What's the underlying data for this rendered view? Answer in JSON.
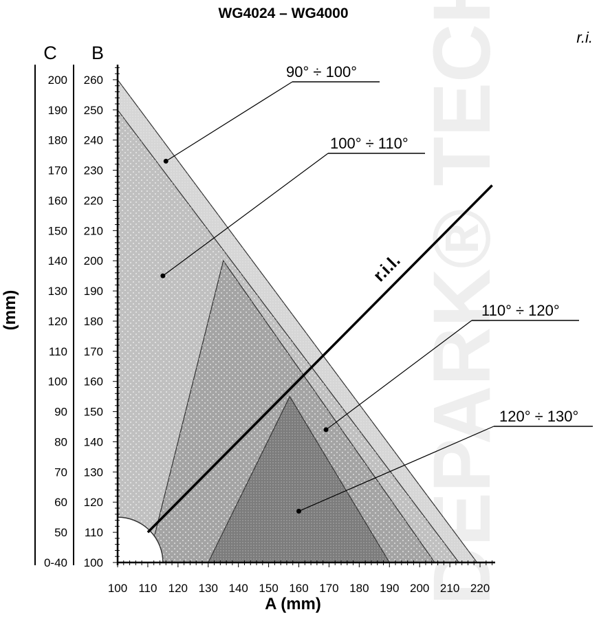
{
  "title": "WG4024 – WG4000",
  "corner_note": "r.i.",
  "watermark": "DEPARK® TECHNOPARK",
  "chart_data": {
    "type": "area",
    "title": "WG4024 – WG4000",
    "xlabel": "A (mm)",
    "ylabel": "(mm)",
    "axis_b_name": "B",
    "axis_c_name": "C",
    "xlim": [
      100,
      225
    ],
    "ylim": [
      100,
      265
    ],
    "x_ticks": [
      100,
      110,
      120,
      130,
      140,
      150,
      160,
      170,
      180,
      190,
      200,
      210,
      220
    ],
    "b_ticks": [
      100,
      110,
      120,
      130,
      140,
      150,
      160,
      170,
      180,
      190,
      200,
      210,
      220,
      230,
      240,
      250,
      260
    ],
    "c_ticks": [
      "0-40",
      "50",
      "60",
      "70",
      "80",
      "90",
      "100",
      "110",
      "120",
      "130",
      "140",
      "150",
      "160",
      "170",
      "180",
      "190",
      "200"
    ],
    "series": [
      {
        "name": "90° ÷ 100°",
        "color": "#d6d6d6",
        "polygon": [
          [
            100,
            260
          ],
          [
            219,
            100
          ],
          [
            100,
            100
          ]
        ]
      },
      {
        "name": "100° ÷ 110°",
        "color": "#c0c0c0",
        "polygon": [
          [
            100,
            250
          ],
          [
            213,
            100
          ],
          [
            100,
            100
          ]
        ]
      },
      {
        "name": "110° ÷ 120°",
        "color": "#a4a4a4",
        "polygon": [
          [
            135,
            200
          ],
          [
            110,
            100
          ],
          [
            205,
            100
          ]
        ]
      },
      {
        "name": "120° ÷ 130°",
        "color": "#7c7c7c",
        "polygon": [
          [
            157,
            155
          ],
          [
            130,
            100
          ],
          [
            190,
            100
          ]
        ]
      }
    ],
    "callouts": [
      {
        "label": "90° ÷ 100°",
        "dot": [
          116,
          233
        ]
      },
      {
        "label": "100° ÷ 110°",
        "dot": [
          115,
          195
        ]
      },
      {
        "label": "110° ÷ 120°",
        "dot": [
          169,
          144
        ]
      },
      {
        "label": "120° ÷ 130°",
        "dot": [
          160,
          117
        ]
      }
    ],
    "line": {
      "name": "r.i.l.",
      "points": [
        [
          110,
          110
        ],
        [
          224,
          225
        ]
      ]
    },
    "excluded_region": "quarter circle at A=100, B=100 radius 15"
  }
}
